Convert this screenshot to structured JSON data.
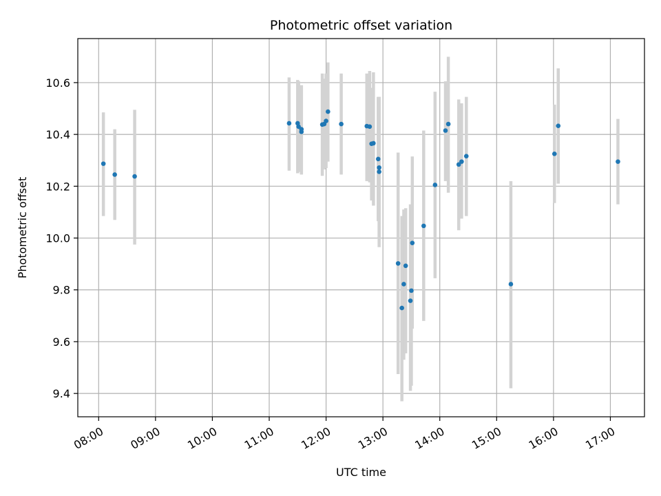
{
  "chart_data": {
    "type": "scatter",
    "title": "Photometric offset variation",
    "xlabel": "UTC time",
    "ylabel": "Photometric offset",
    "x_ticks": [
      "08:00",
      "09:00",
      "10:00",
      "11:00",
      "12:00",
      "13:00",
      "14:00",
      "15:00",
      "16:00",
      "17:00"
    ],
    "y_ticks": [
      "9.4",
      "9.6",
      "9.8",
      "10.0",
      "10.2",
      "10.4",
      "10.6"
    ],
    "xlim": [
      "07:38",
      "17:36"
    ],
    "ylim": [
      9.31,
      10.77
    ],
    "grid": true,
    "colors": {
      "point": "#1f77b4",
      "error_bar": "#d3d3d3"
    },
    "points": [
      {
        "t": "08:05",
        "y": 10.287,
        "lo": 10.085,
        "hi": 10.485
      },
      {
        "t": "08:17",
        "y": 10.245,
        "lo": 10.07,
        "hi": 10.42
      },
      {
        "t": "08:38",
        "y": 10.238,
        "lo": 9.975,
        "hi": 10.495
      },
      {
        "t": "11:21",
        "y": 10.443,
        "lo": 10.26,
        "hi": 10.62
      },
      {
        "t": "11:30",
        "y": 10.443,
        "lo": 10.25,
        "hi": 10.61
      },
      {
        "t": "11:31",
        "y": 10.43,
        "lo": 10.255,
        "hi": 10.605
      },
      {
        "t": "11:34",
        "y": 10.42,
        "lo": 10.25,
        "hi": 10.59
      },
      {
        "t": "11:34",
        "y": 10.41,
        "lo": 10.245,
        "hi": 10.585
      },
      {
        "t": "11:56",
        "y": 10.438,
        "lo": 10.24,
        "hi": 10.635
      },
      {
        "t": "11:58",
        "y": 10.44,
        "lo": 10.265,
        "hi": 10.615
      },
      {
        "t": "12:00",
        "y": 10.452,
        "lo": 10.27,
        "hi": 10.635
      },
      {
        "t": "12:02",
        "y": 10.488,
        "lo": 10.295,
        "hi": 10.678
      },
      {
        "t": "12:16",
        "y": 10.44,
        "lo": 10.245,
        "hi": 10.635
      },
      {
        "t": "12:43",
        "y": 10.432,
        "lo": 10.22,
        "hi": 10.635
      },
      {
        "t": "12:46",
        "y": 10.43,
        "lo": 10.215,
        "hi": 10.645
      },
      {
        "t": "12:48",
        "y": 10.364,
        "lo": 10.145,
        "hi": 10.58
      },
      {
        "t": "12:50",
        "y": 10.366,
        "lo": 10.125,
        "hi": 10.64
      },
      {
        "t": "12:55",
        "y": 10.305,
        "lo": 10.065,
        "hi": 10.545
      },
      {
        "t": "12:56",
        "y": 10.272,
        "lo": 10.0,
        "hi": 10.545
      },
      {
        "t": "12:56",
        "y": 10.256,
        "lo": 9.965,
        "hi": 10.545
      },
      {
        "t": "13:16",
        "y": 9.902,
        "lo": 9.475,
        "hi": 10.33
      },
      {
        "t": "13:20",
        "y": 9.73,
        "lo": 9.37,
        "hi": 10.085
      },
      {
        "t": "13:22",
        "y": 9.822,
        "lo": 9.53,
        "hi": 10.11
      },
      {
        "t": "13:24",
        "y": 9.893,
        "lo": 9.555,
        "hi": 10.115
      },
      {
        "t": "13:29",
        "y": 9.758,
        "lo": 9.41,
        "hi": 10.13
      },
      {
        "t": "13:30",
        "y": 9.797,
        "lo": 9.43,
        "hi": 10.065
      },
      {
        "t": "13:31",
        "y": 9.981,
        "lo": 9.65,
        "hi": 10.315
      },
      {
        "t": "13:43",
        "y": 10.047,
        "lo": 9.68,
        "hi": 10.415
      },
      {
        "t": "13:55",
        "y": 10.205,
        "lo": 9.845,
        "hi": 10.565
      },
      {
        "t": "14:06",
        "y": 10.415,
        "lo": 10.22,
        "hi": 10.605
      },
      {
        "t": "14:09",
        "y": 10.44,
        "lo": 10.175,
        "hi": 10.7
      },
      {
        "t": "14:20",
        "y": 10.284,
        "lo": 10.03,
        "hi": 10.535
      },
      {
        "t": "14:23",
        "y": 10.295,
        "lo": 10.075,
        "hi": 10.52
      },
      {
        "t": "14:28",
        "y": 10.316,
        "lo": 10.085,
        "hi": 10.545
      },
      {
        "t": "15:15",
        "y": 9.822,
        "lo": 9.42,
        "hi": 10.22
      },
      {
        "t": "16:01",
        "y": 10.325,
        "lo": 10.135,
        "hi": 10.515
      },
      {
        "t": "16:05",
        "y": 10.433,
        "lo": 10.21,
        "hi": 10.655
      },
      {
        "t": "17:08",
        "y": 10.295,
        "lo": 10.13,
        "hi": 10.46
      }
    ]
  }
}
